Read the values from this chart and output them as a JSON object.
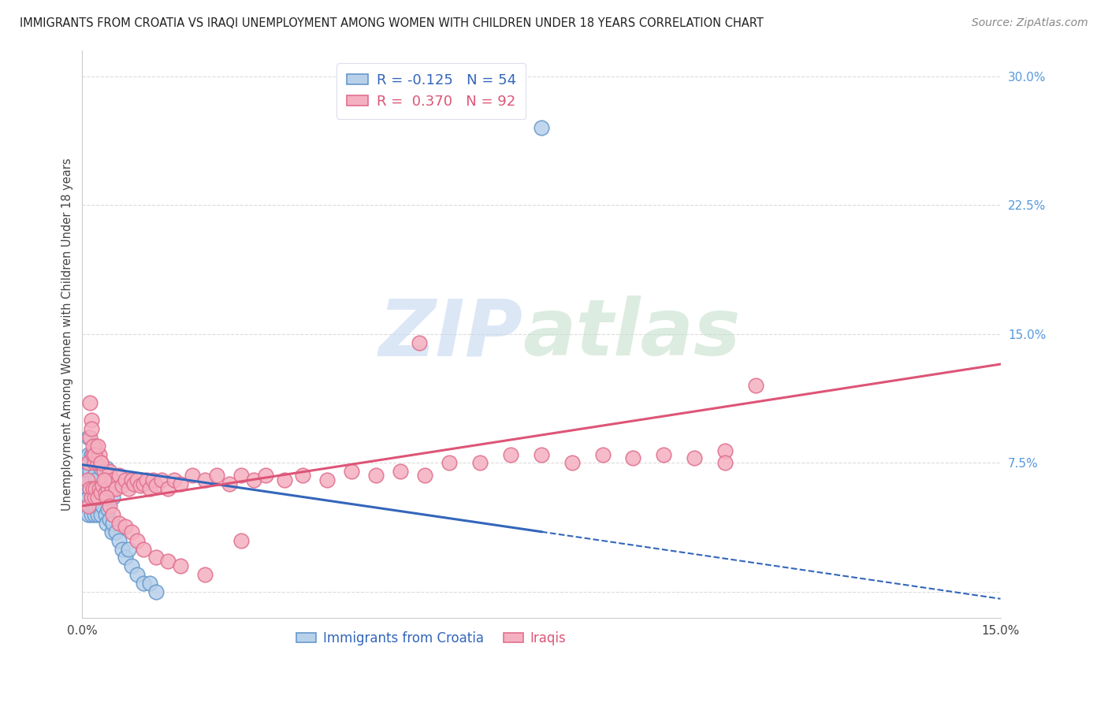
{
  "title": "IMMIGRANTS FROM CROATIA VS IRAQI UNEMPLOYMENT AMONG WOMEN WITH CHILDREN UNDER 18 YEARS CORRELATION CHART",
  "source": "Source: ZipAtlas.com",
  "ylabel": "Unemployment Among Women with Children Under 18 years",
  "xlim": [
    0.0,
    0.15
  ],
  "ylim": [
    -0.015,
    0.315
  ],
  "xticks": [
    0.0,
    0.025,
    0.05,
    0.075,
    0.1,
    0.125,
    0.15
  ],
  "xticklabels": [
    "0.0%",
    "",
    "",
    "",
    "",
    "",
    "15.0%"
  ],
  "yticks": [
    0.0,
    0.075,
    0.15,
    0.225,
    0.3
  ],
  "yticklabels": [
    "",
    "7.5%",
    "15.0%",
    "22.5%",
    "30.0%"
  ],
  "legend1_labels": [
    "R = -0.125   N = 54",
    "R =  0.370   N = 92"
  ],
  "legend2_labels": [
    "Immigrants from Croatia",
    "Iraqis"
  ],
  "croatia_fill": "#b8d0ea",
  "croatia_edge": "#6699cc",
  "iraq_fill": "#f5b0c0",
  "iraq_edge": "#e07090",
  "croatia_line_color": "#3366bb",
  "iraq_line_color": "#dd5577",
  "grid_color": "#cccccc",
  "watermark_zip": "ZIP",
  "watermark_atlas": "atlas",
  "watermark_color_zip": "#c8d8ee",
  "watermark_color_atlas": "#c8d8cc",
  "title_color": "#222222",
  "source_color": "#888888",
  "ytick_color": "#5599dd",
  "xtick_color": "#444444",
  "ylabel_color": "#444444",
  "background": "#ffffff",
  "croatia_line_intercept": 0.074,
  "croatia_line_slope": -0.52,
  "croatia_line_solid_end": 0.075,
  "iraq_line_intercept": 0.05,
  "iraq_line_slope": 0.55,
  "croatia_x": [
    0.0008,
    0.0008,
    0.0008,
    0.001,
    0.001,
    0.001,
    0.001,
    0.001,
    0.001,
    0.0012,
    0.0012,
    0.0012,
    0.0012,
    0.0015,
    0.0015,
    0.0015,
    0.0015,
    0.0018,
    0.0018,
    0.0018,
    0.002,
    0.002,
    0.002,
    0.0022,
    0.0022,
    0.0025,
    0.0025,
    0.0025,
    0.0028,
    0.003,
    0.003,
    0.003,
    0.0033,
    0.0035,
    0.0038,
    0.004,
    0.004,
    0.004,
    0.0042,
    0.0045,
    0.0048,
    0.005,
    0.005,
    0.0055,
    0.006,
    0.0065,
    0.007,
    0.0075,
    0.008,
    0.009,
    0.01,
    0.011,
    0.012,
    0.075
  ],
  "croatia_y": [
    0.06,
    0.065,
    0.07,
    0.045,
    0.055,
    0.065,
    0.07,
    0.08,
    0.09,
    0.05,
    0.06,
    0.07,
    0.075,
    0.045,
    0.055,
    0.065,
    0.08,
    0.05,
    0.06,
    0.075,
    0.045,
    0.055,
    0.068,
    0.05,
    0.065,
    0.045,
    0.058,
    0.075,
    0.05,
    0.045,
    0.058,
    0.072,
    0.05,
    0.062,
    0.045,
    0.04,
    0.055,
    0.072,
    0.048,
    0.042,
    0.035,
    0.04,
    0.055,
    0.035,
    0.03,
    0.025,
    0.02,
    0.025,
    0.015,
    0.01,
    0.005,
    0.005,
    0.0,
    0.27
  ],
  "iraq_x": [
    0.0008,
    0.001,
    0.001,
    0.0012,
    0.0012,
    0.0015,
    0.0015,
    0.0018,
    0.0018,
    0.002,
    0.002,
    0.0022,
    0.0022,
    0.0025,
    0.0025,
    0.0028,
    0.0028,
    0.003,
    0.003,
    0.0033,
    0.0035,
    0.0038,
    0.004,
    0.0042,
    0.0045,
    0.0048,
    0.005,
    0.0055,
    0.006,
    0.0065,
    0.007,
    0.0075,
    0.008,
    0.0085,
    0.009,
    0.0095,
    0.01,
    0.0105,
    0.011,
    0.0115,
    0.012,
    0.013,
    0.014,
    0.015,
    0.016,
    0.018,
    0.02,
    0.022,
    0.024,
    0.026,
    0.028,
    0.03,
    0.033,
    0.036,
    0.04,
    0.044,
    0.048,
    0.052,
    0.056,
    0.06,
    0.065,
    0.07,
    0.075,
    0.08,
    0.085,
    0.09,
    0.095,
    0.1,
    0.105,
    0.11,
    0.0012,
    0.0015,
    0.0018,
    0.002,
    0.0025,
    0.003,
    0.0035,
    0.004,
    0.0045,
    0.005,
    0.006,
    0.007,
    0.008,
    0.009,
    0.01,
    0.012,
    0.014,
    0.016,
    0.02,
    0.026,
    0.055,
    0.105
  ],
  "iraq_y": [
    0.065,
    0.05,
    0.075,
    0.06,
    0.09,
    0.055,
    0.1,
    0.06,
    0.08,
    0.055,
    0.075,
    0.06,
    0.085,
    0.055,
    0.075,
    0.06,
    0.08,
    0.058,
    0.075,
    0.062,
    0.07,
    0.058,
    0.065,
    0.06,
    0.07,
    0.06,
    0.065,
    0.06,
    0.068,
    0.062,
    0.065,
    0.06,
    0.065,
    0.063,
    0.065,
    0.062,
    0.063,
    0.065,
    0.06,
    0.065,
    0.062,
    0.065,
    0.06,
    0.065,
    0.063,
    0.068,
    0.065,
    0.068,
    0.063,
    0.068,
    0.065,
    0.068,
    0.065,
    0.068,
    0.065,
    0.07,
    0.068,
    0.07,
    0.068,
    0.075,
    0.075,
    0.08,
    0.08,
    0.075,
    0.08,
    0.078,
    0.08,
    0.078,
    0.082,
    0.12,
    0.11,
    0.095,
    0.085,
    0.08,
    0.085,
    0.075,
    0.065,
    0.055,
    0.05,
    0.045,
    0.04,
    0.038,
    0.035,
    0.03,
    0.025,
    0.02,
    0.018,
    0.015,
    0.01,
    0.03,
    0.145,
    0.075
  ]
}
